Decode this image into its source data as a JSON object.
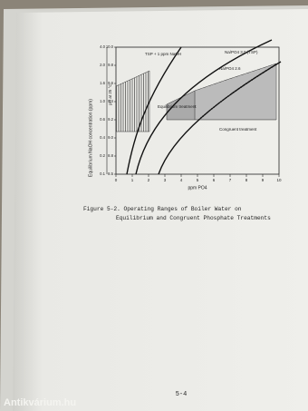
{
  "figure": {
    "y_axis_label": "Equilibrium NaOH concentration (ppm)",
    "y2_axis_label": "pH at 25 °C",
    "x_axis_label": "ppm PO4",
    "ppm_ticks": [
      "4.0",
      "2.0",
      "1.6",
      "1.0",
      "0.6",
      "0.4",
      "0.2",
      "0.1"
    ],
    "ph_ticks": [
      "10.0",
      "9.8",
      "9.6",
      "9.4",
      "9.2",
      "9.0",
      "8.8",
      "8.5"
    ],
    "x_ticks": [
      "0",
      "1",
      "2",
      "3",
      "4",
      "5",
      "6",
      "7",
      "8",
      "9",
      "10"
    ],
    "curve_labels": [
      "TSP + 1 ppm NaOH",
      "Na/PO4 3.0 (TSP)",
      "Na/PO4 2.6"
    ],
    "region_labels": [
      "Equilibrium treatment",
      "Congruent treatment"
    ]
  },
  "caption": "Figure 5-2.  Operating Ranges of Boiler Water on Equilibrium and Congruent Phosphate Treatments",
  "page_number": "5-4",
  "watermark": "Antikvárium.hu"
}
